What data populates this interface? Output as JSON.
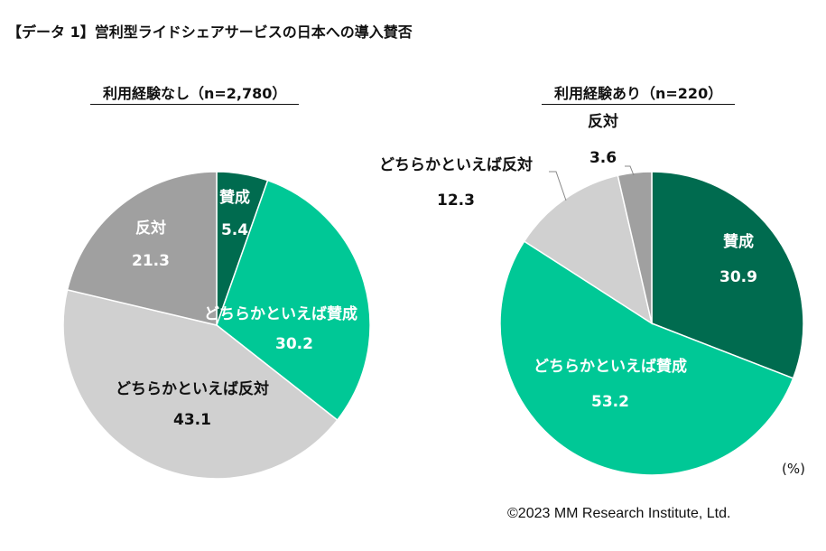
{
  "title": "【データ 1】営利型ライドシェアサービスの日本への導入賛否",
  "unit": "(%)",
  "copyright": "©2023 MM Research Institute, Ltd.",
  "colors": {
    "賛成": "#006b4f",
    "どちらかといえば賛成": "#00c896",
    "どちらかといえば反対": "#d0d0d0",
    "反対": "#a0a0a0"
  },
  "chart_data": [
    {
      "type": "pie",
      "title": "利用経験なし（n=2,780）",
      "categories": [
        "賛成",
        "どちらかといえば賛成",
        "どちらかといえば反対",
        "反対"
      ],
      "values": [
        5.4,
        30.2,
        43.1,
        21.3
      ],
      "value_labels": [
        "5.4",
        "30.2",
        "43.1",
        "21.3"
      ],
      "direction": "clockwise from top"
    },
    {
      "type": "pie",
      "title": "利用経験あり（n=220）",
      "categories": [
        "賛成",
        "どちらかといえば賛成",
        "どちらかといえば反対",
        "反対"
      ],
      "values": [
        30.9,
        53.2,
        12.3,
        3.6
      ],
      "value_labels": [
        "30.9",
        "53.2",
        "12.3",
        "3.6"
      ],
      "direction": "clockwise from top"
    }
  ]
}
